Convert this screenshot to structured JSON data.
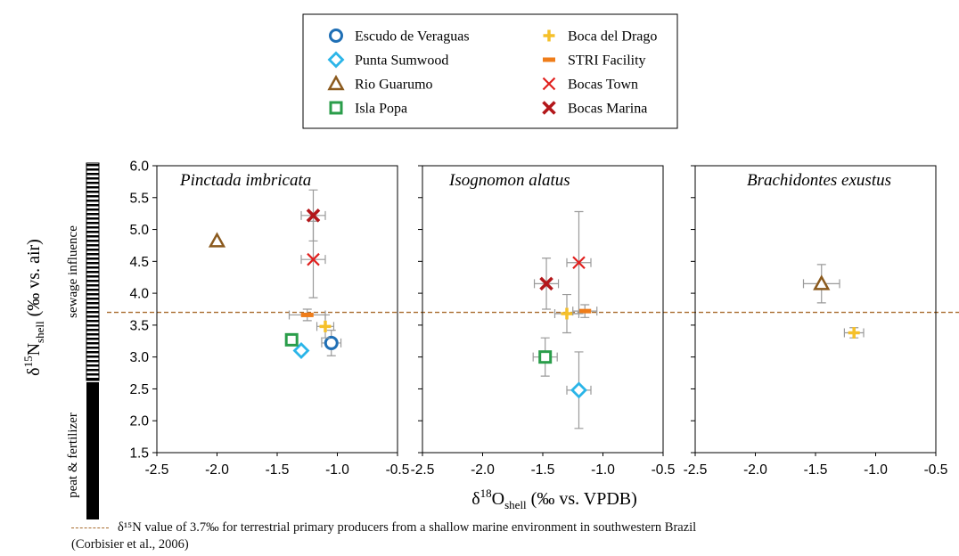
{
  "legend": {
    "items": [
      {
        "key": "ev",
        "label": "Escudo de Veraguas",
        "marker": "circle",
        "color": "#1f6fb5"
      },
      {
        "key": "ps",
        "label": "Punta Sumwood",
        "marker": "diamond",
        "color": "#2bb5e8"
      },
      {
        "key": "rg",
        "label": "Rio Guarumo",
        "marker": "triangle",
        "color": "#8b5a1e"
      },
      {
        "key": "ip",
        "label": "Isla Popa",
        "marker": "square",
        "color": "#2a9d4a"
      },
      {
        "key": "bd",
        "label": "Boca del Drago",
        "marker": "plus",
        "color": "#f5c02a"
      },
      {
        "key": "sf",
        "label": "STRI Facility",
        "marker": "dash",
        "color": "#ef7d1a"
      },
      {
        "key": "bt",
        "label": "Bocas Town",
        "marker": "x",
        "color": "#e0201e"
      },
      {
        "key": "bm",
        "label": "Bocas Marina",
        "marker": "xbold",
        "color": "#b3171a"
      }
    ]
  },
  "axes": {
    "xlabel_main": "δ",
    "xlabel_sup": "18",
    "xlabel_var": "O",
    "xlabel_sub": "shell",
    "xlabel_unit": " (‰ vs. VPDB)",
    "ylabel_main": "δ",
    "ylabel_sup": "15",
    "ylabel_var": "N",
    "ylabel_sub": "shell",
    "ylabel_unit": " (‰ vs. air)",
    "yticks": [
      "1.5",
      "2.0",
      "2.5",
      "3.0",
      "3.5",
      "4.0",
      "4.5",
      "5.0",
      "5.5",
      "6.0"
    ],
    "xticks": [
      "-2.5",
      "-2.0",
      "-1.5",
      "-1.0",
      "-0.5"
    ]
  },
  "influence_bar": {
    "sewage_label": "sewage influence",
    "peat_label": "peat & fertilizer"
  },
  "reference_line": {
    "value": 3.7,
    "color": "#a86b2d",
    "caption_line1": "δ¹⁵N value of 3.7‰ for terrestrial primary producers from a shallow marine environment in southwestern Brazil",
    "caption_line2": "(Corbisier et al., 2006)"
  },
  "chart_data": {
    "type": "scatter",
    "xlim": [
      -2.5,
      -0.5
    ],
    "ylim": [
      1.5,
      6.0
    ],
    "reference_y": 3.7,
    "panels": [
      {
        "title": "Pinctada imbricata",
        "points": [
          {
            "site": "ev",
            "x": -1.05,
            "y": 3.22,
            "xerr": 0.08,
            "yerr": 0.2
          },
          {
            "site": "ps",
            "x": -1.3,
            "y": 3.1,
            "xerr": 0.0,
            "yerr": 0.0
          },
          {
            "site": "rg",
            "x": -2.0,
            "y": 4.82,
            "xerr": 0.0,
            "yerr": 0.0
          },
          {
            "site": "ip",
            "x": -1.38,
            "y": 3.27,
            "xerr": 0.0,
            "yerr": 0.0
          },
          {
            "site": "bd",
            "x": -1.1,
            "y": 3.48,
            "xerr": 0.07,
            "yerr": 0.18
          },
          {
            "site": "sf",
            "x": -1.25,
            "y": 3.66,
            "xerr": 0.15,
            "yerr": 0.09
          },
          {
            "site": "bt",
            "x": -1.2,
            "y": 4.53,
            "xerr": 0.1,
            "yerr": 0.6
          },
          {
            "site": "bm",
            "x": -1.2,
            "y": 5.22,
            "xerr": 0.1,
            "yerr": 0.4
          }
        ]
      },
      {
        "title": "Isognomon alatus",
        "points": [
          {
            "site": "ps",
            "x": -1.2,
            "y": 2.48,
            "xerr": 0.1,
            "yerr": 0.6
          },
          {
            "site": "ip",
            "x": -1.48,
            "y": 3.0,
            "xerr": 0.1,
            "yerr": 0.3
          },
          {
            "site": "bd",
            "x": -1.3,
            "y": 3.68,
            "xerr": 0.1,
            "yerr": 0.3
          },
          {
            "site": "sf",
            "x": -1.15,
            "y": 3.72,
            "xerr": 0.1,
            "yerr": 0.1
          },
          {
            "site": "bt",
            "x": -1.2,
            "y": 4.48,
            "xerr": 0.1,
            "yerr": 0.8
          },
          {
            "site": "bm",
            "x": -1.47,
            "y": 4.15,
            "xerr": 0.1,
            "yerr": 0.4
          }
        ]
      },
      {
        "title": "Brachidontes exustus",
        "points": [
          {
            "site": "rg",
            "x": -1.45,
            "y": 4.15,
            "xerr": 0.15,
            "yerr": 0.3
          },
          {
            "site": "bd",
            "x": -1.18,
            "y": 3.38,
            "xerr": 0.08,
            "yerr": 0.08
          }
        ]
      }
    ]
  }
}
